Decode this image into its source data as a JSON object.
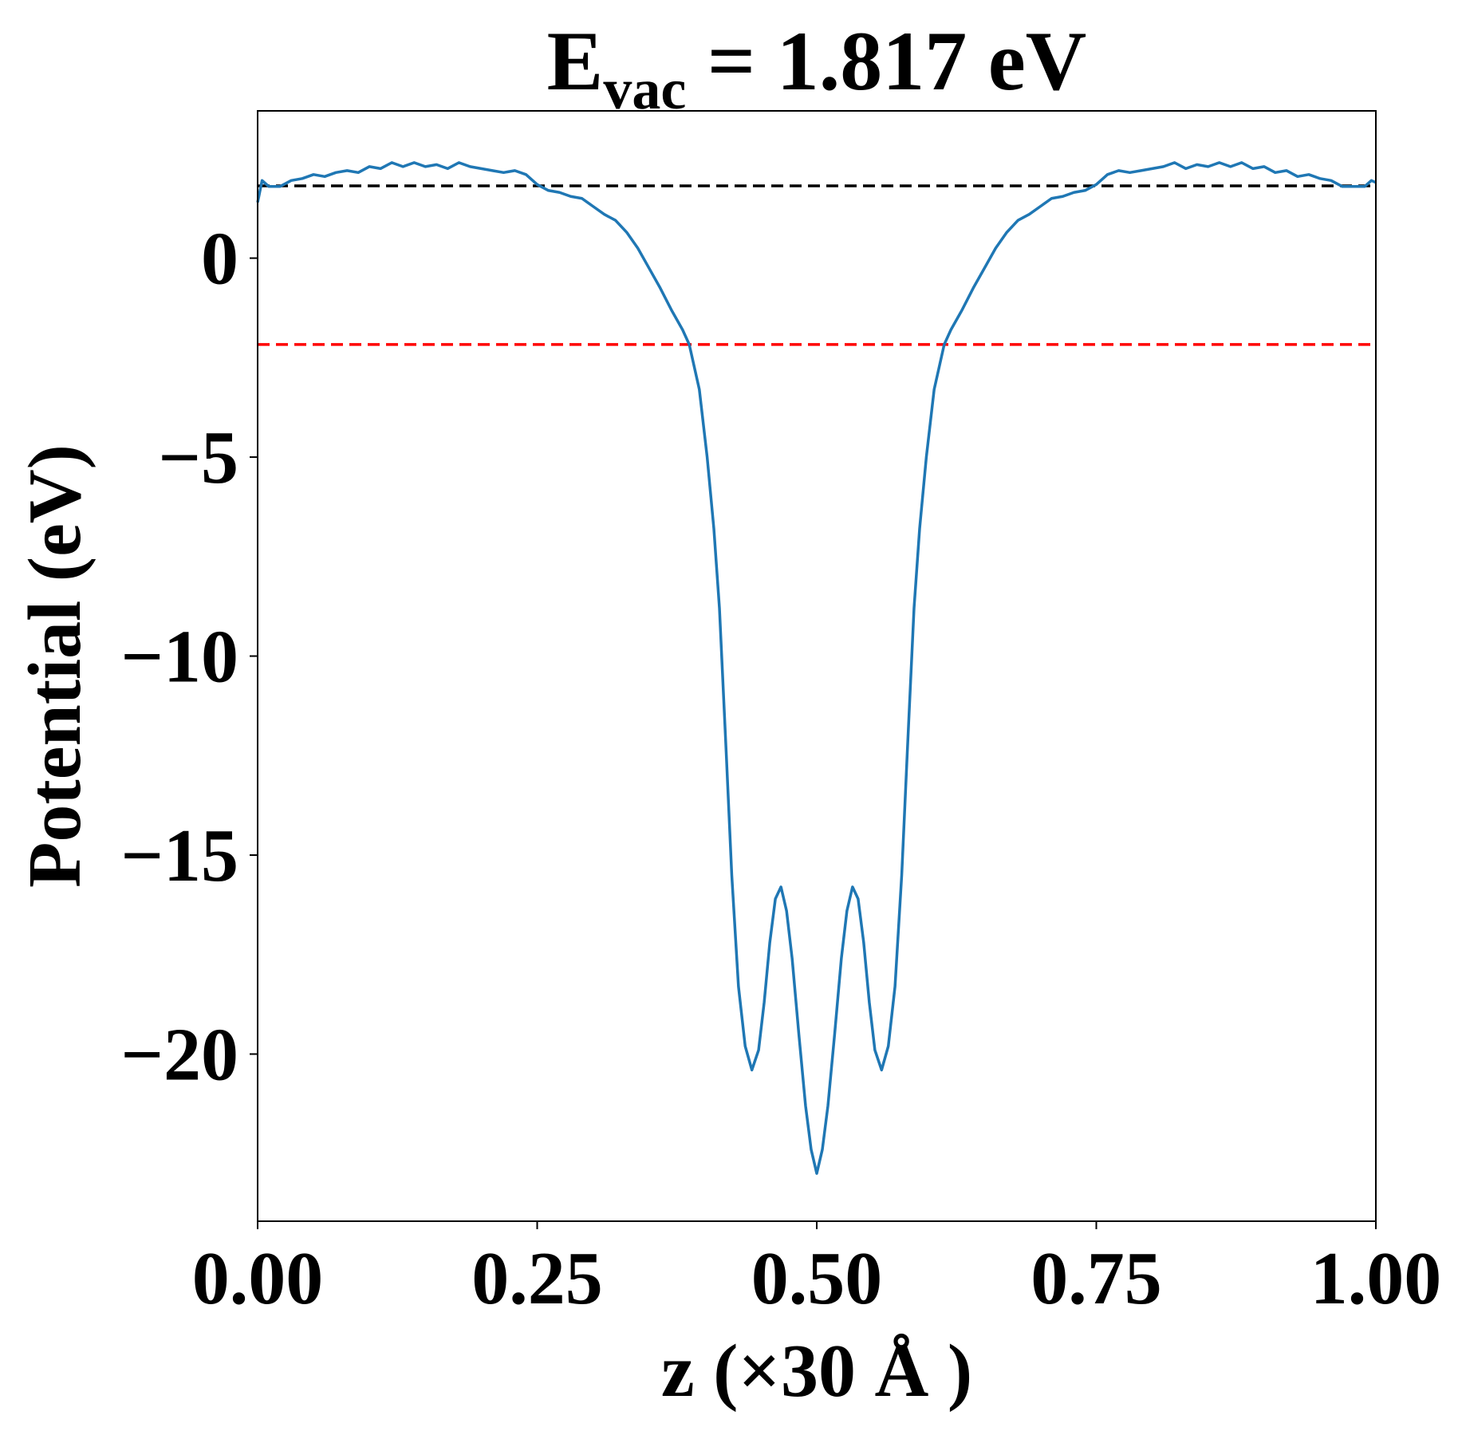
{
  "chart_data": {
    "type": "line",
    "title": {
      "main": "E",
      "subscript": "vac",
      "rest": " = 1.817 eV"
    },
    "x_label": "z (×30 Å )",
    "y_label": "Potential (eV)",
    "x": [
      0.0,
      0.004,
      0.01,
      0.02,
      0.03,
      0.04,
      0.05,
      0.06,
      0.07,
      0.08,
      0.09,
      0.1,
      0.11,
      0.12,
      0.13,
      0.14,
      0.15,
      0.16,
      0.17,
      0.18,
      0.19,
      0.2,
      0.21,
      0.22,
      0.23,
      0.24,
      0.25,
      0.26,
      0.27,
      0.28,
      0.29,
      0.3,
      0.31,
      0.32,
      0.33,
      0.34,
      0.35,
      0.36,
      0.37,
      0.38,
      0.386,
      0.395,
      0.402,
      0.408,
      0.413,
      0.419,
      0.424,
      0.43,
      0.436,
      0.442,
      0.448,
      0.453,
      0.458,
      0.463,
      0.468,
      0.473,
      0.478,
      0.484,
      0.49,
      0.495,
      0.5,
      0.505,
      0.51,
      0.516,
      0.522,
      0.527,
      0.532,
      0.537,
      0.542,
      0.547,
      0.552,
      0.558,
      0.564,
      0.57,
      0.576,
      0.581,
      0.587,
      0.592,
      0.598,
      0.605,
      0.614,
      0.62,
      0.63,
      0.64,
      0.65,
      0.66,
      0.67,
      0.68,
      0.69,
      0.7,
      0.71,
      0.72,
      0.73,
      0.74,
      0.75,
      0.76,
      0.77,
      0.78,
      0.79,
      0.8,
      0.81,
      0.82,
      0.83,
      0.84,
      0.85,
      0.86,
      0.87,
      0.88,
      0.89,
      0.9,
      0.91,
      0.92,
      0.93,
      0.94,
      0.95,
      0.96,
      0.97,
      0.98,
      0.99,
      0.996,
      1.0
    ],
    "series": [
      {
        "name": "potential",
        "color": "#1f77b4",
        "values": [
          1.4,
          1.95,
          1.8,
          1.8,
          1.95,
          2.0,
          2.1,
          2.05,
          2.15,
          2.2,
          2.15,
          2.3,
          2.25,
          2.4,
          2.3,
          2.4,
          2.3,
          2.35,
          2.25,
          2.4,
          2.3,
          2.25,
          2.2,
          2.15,
          2.2,
          2.1,
          1.85,
          1.7,
          1.65,
          1.55,
          1.5,
          1.3,
          1.1,
          0.95,
          0.65,
          0.25,
          -0.25,
          -0.75,
          -1.3,
          -1.8,
          -2.17,
          -3.3,
          -5.0,
          -6.8,
          -8.8,
          -12.4,
          -15.5,
          -18.3,
          -19.8,
          -20.4,
          -19.9,
          -18.7,
          -17.2,
          -16.1,
          -15.8,
          -16.4,
          -17.6,
          -19.5,
          -21.3,
          -22.4,
          -23.0,
          -22.4,
          -21.3,
          -19.5,
          -17.6,
          -16.4,
          -15.8,
          -16.1,
          -17.2,
          -18.7,
          -19.9,
          -20.4,
          -19.8,
          -18.3,
          -15.5,
          -12.4,
          -8.8,
          -6.8,
          -5.0,
          -3.3,
          -2.17,
          -1.8,
          -1.3,
          -0.75,
          -0.25,
          0.25,
          0.65,
          0.95,
          1.1,
          1.3,
          1.5,
          1.55,
          1.65,
          1.7,
          1.85,
          2.1,
          2.2,
          2.15,
          2.2,
          2.25,
          2.3,
          2.4,
          2.25,
          2.35,
          2.3,
          2.4,
          2.3,
          2.4,
          2.25,
          2.3,
          2.15,
          2.2,
          2.05,
          2.1,
          2.0,
          1.95,
          1.8,
          1.8,
          1.8,
          1.95,
          1.9
        ]
      }
    ],
    "hlines": [
      {
        "value": 1.817,
        "color": "#000000"
      },
      {
        "value": -2.17,
        "color": "#ff0000"
      }
    ],
    "xlim": [
      0,
      1
    ],
    "ylim": [
      -24.2,
      3.7
    ],
    "xticks": [
      {
        "value": 0,
        "label": "0.00"
      },
      {
        "value": 0.25,
        "label": "0.25"
      },
      {
        "value": 0.5,
        "label": "0.50"
      },
      {
        "value": 0.75,
        "label": "0.75"
      },
      {
        "value": 1,
        "label": "1.00"
      }
    ],
    "yticks": [
      0,
      {
        "value": -5,
        "label": "−5"
      },
      {
        "value": -10,
        "label": "−10"
      },
      {
        "value": -15,
        "label": "−15"
      },
      {
        "value": -20,
        "label": "−20"
      }
    ]
  }
}
